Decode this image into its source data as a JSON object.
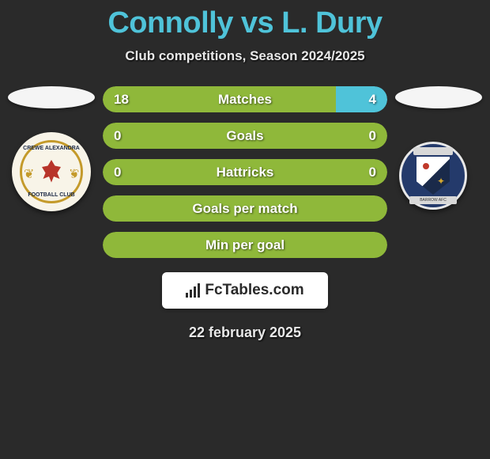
{
  "title": {
    "player1": "Connolly",
    "vs": "vs",
    "player2": "L. Dury"
  },
  "subtitle": "Club competitions, Season 2024/2025",
  "colors": {
    "player1_bar": "#8fb83a",
    "player2_bar": "#4fc3d9",
    "neutral_bar": "#8fb83a",
    "background": "#2a2a2a"
  },
  "crest_left": {
    "top_text": "CREWE ALEXANDRA",
    "bottom_text": "FOOTBALL CLUB"
  },
  "crest_right": {
    "top_text": "",
    "bottom_text": "BARROW AFC"
  },
  "stats": [
    {
      "label": "Matches",
      "left_value": "18",
      "right_value": "4",
      "left_pct": 82,
      "right_pct": 18,
      "left_color": "#8fb83a",
      "right_color": "#4fc3d9"
    },
    {
      "label": "Goals",
      "left_value": "0",
      "right_value": "0",
      "left_pct": 100,
      "right_pct": 0,
      "left_color": "#8fb83a",
      "right_color": "#4fc3d9"
    },
    {
      "label": "Hattricks",
      "left_value": "0",
      "right_value": "0",
      "left_pct": 100,
      "right_pct": 0,
      "left_color": "#8fb83a",
      "right_color": "#4fc3d9"
    },
    {
      "label": "Goals per match",
      "left_value": "",
      "right_value": "",
      "left_pct": 100,
      "right_pct": 0,
      "left_color": "#8fb83a",
      "right_color": "#4fc3d9"
    },
    {
      "label": "Min per goal",
      "left_value": "",
      "right_value": "",
      "left_pct": 100,
      "right_pct": 0,
      "left_color": "#8fb83a",
      "right_color": "#4fc3d9"
    }
  ],
  "footer": {
    "site": "FcTables.com"
  },
  "date": "22 february 2025"
}
